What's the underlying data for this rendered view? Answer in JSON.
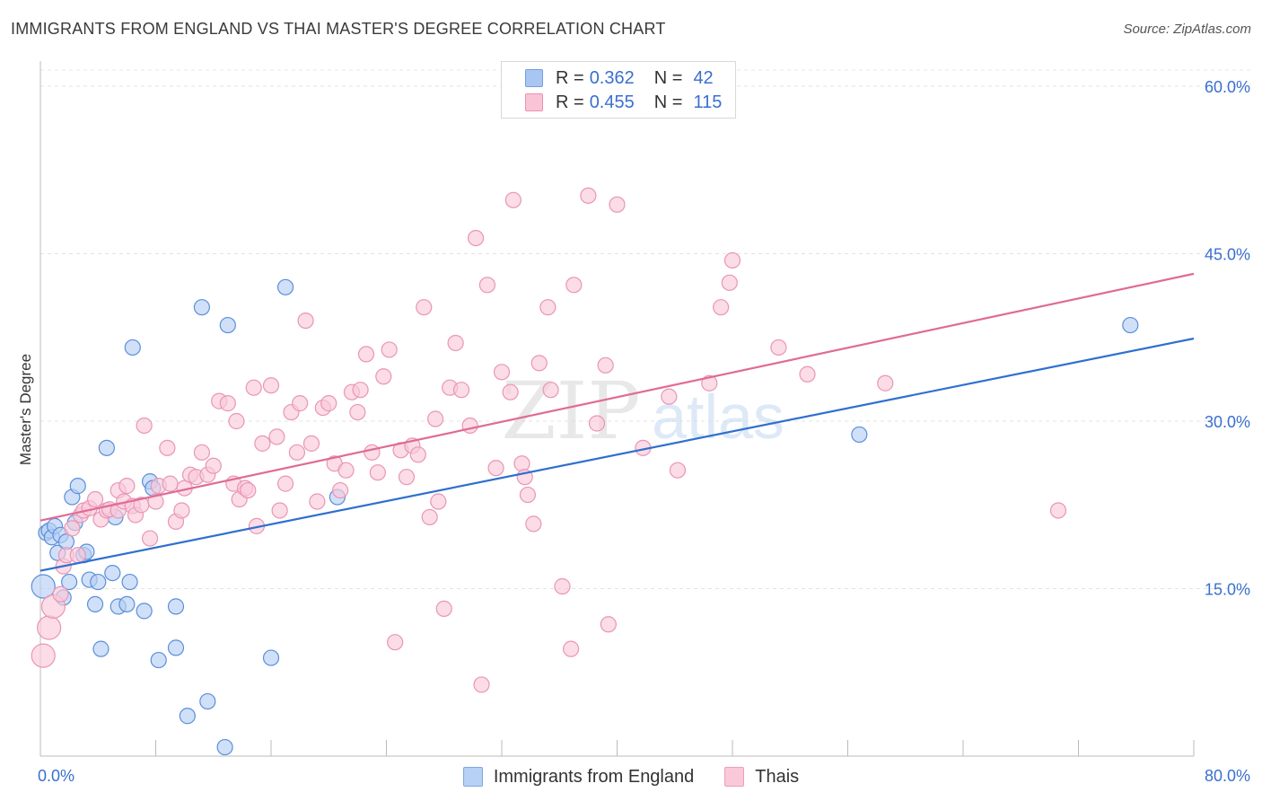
{
  "header": {
    "title": "IMMIGRANTS FROM ENGLAND VS THAI MASTER'S DEGREE CORRELATION CHART",
    "source": "Source: ZipAtlas.com"
  },
  "legend_top": {
    "r_label": "R =",
    "n_label": "N =",
    "series": [
      {
        "r": "0.362",
        "n": "42",
        "color": "#a9c6f2",
        "border": "#6f9fe0"
      },
      {
        "r": "0.455",
        "n": "115",
        "color": "#f9c4d6",
        "border": "#ec8fb0"
      }
    ]
  },
  "legend_bottom": {
    "items": [
      {
        "label": "Immigrants from England",
        "color": "#b7d0f5",
        "border": "#7ea6e3"
      },
      {
        "label": "Thais",
        "color": "#f9c9da",
        "border": "#ee9cbb"
      }
    ]
  },
  "watermark": {
    "zip": "ZIP",
    "atlas": "atlas"
  },
  "chart_data": {
    "type": "scatter",
    "title": "IMMIGRANTS FROM ENGLAND VS THAI MASTER'S DEGREE CORRELATION CHART",
    "xlabel": "",
    "ylabel": "Master's Degree",
    "xlim": [
      0,
      80
    ],
    "ylim": [
      0,
      60
    ],
    "x_tick_labels": [
      "0.0%",
      "80.0%"
    ],
    "y_ticks": [
      15,
      30,
      45,
      60
    ],
    "y_tick_labels": [
      "15.0%",
      "30.0%",
      "45.0%",
      "60.0%"
    ],
    "grid": true,
    "series": [
      {
        "name": "Immigrants from England",
        "color": "#5b8fd9",
        "fill": "#b7d0f5",
        "trend": {
          "x": [
            0,
            80
          ],
          "y": [
            16.6,
            37.4
          ],
          "color": "#2f6fd0"
        },
        "points": [
          [
            0.2,
            15.2
          ],
          [
            0.4,
            20.0
          ],
          [
            0.6,
            20.2
          ],
          [
            0.8,
            19.6
          ],
          [
            1.0,
            20.6
          ],
          [
            1.2,
            18.2
          ],
          [
            1.4,
            19.8
          ],
          [
            1.6,
            14.2
          ],
          [
            1.8,
            19.2
          ],
          [
            2.0,
            15.6
          ],
          [
            2.2,
            23.2
          ],
          [
            2.4,
            20.9
          ],
          [
            2.6,
            24.2
          ],
          [
            3.0,
            18.0
          ],
          [
            3.2,
            18.3
          ],
          [
            3.4,
            15.8
          ],
          [
            3.8,
            13.6
          ],
          [
            4.0,
            15.6
          ],
          [
            4.2,
            9.6
          ],
          [
            4.6,
            27.6
          ],
          [
            5.0,
            16.4
          ],
          [
            5.2,
            21.4
          ],
          [
            5.4,
            13.4
          ],
          [
            6.0,
            13.6
          ],
          [
            6.2,
            15.6
          ],
          [
            6.4,
            36.6
          ],
          [
            7.2,
            13.0
          ],
          [
            7.6,
            24.6
          ],
          [
            7.8,
            24.0
          ],
          [
            8.2,
            8.6
          ],
          [
            9.4,
            13.4
          ],
          [
            9.4,
            9.7
          ],
          [
            10.2,
            3.6
          ],
          [
            11.2,
            40.2
          ],
          [
            11.6,
            4.9
          ],
          [
            12.8,
            0.8
          ],
          [
            13.0,
            38.6
          ],
          [
            16.0,
            8.8
          ],
          [
            17.0,
            42.0
          ],
          [
            20.6,
            23.2
          ],
          [
            56.8,
            28.8
          ],
          [
            75.6,
            38.6
          ]
        ]
      },
      {
        "name": "Thais",
        "color": "#e996b4",
        "fill": "#f9c9da",
        "trend": {
          "x": [
            0,
            80
          ],
          "y": [
            21.1,
            43.2
          ],
          "color": "#e06b95"
        },
        "points": [
          [
            0.2,
            9.0
          ],
          [
            0.6,
            11.5
          ],
          [
            0.9,
            13.4
          ],
          [
            1.4,
            14.5
          ],
          [
            1.6,
            17.0
          ],
          [
            1.8,
            18.0
          ],
          [
            2.2,
            20.4
          ],
          [
            2.6,
            18.0
          ],
          [
            2.8,
            21.6
          ],
          [
            3.0,
            22.0
          ],
          [
            3.4,
            22.2
          ],
          [
            3.8,
            23.0
          ],
          [
            4.2,
            21.2
          ],
          [
            4.6,
            22.0
          ],
          [
            4.8,
            22.1
          ],
          [
            5.4,
            22.0
          ],
          [
            5.4,
            23.8
          ],
          [
            5.8,
            22.8
          ],
          [
            6.0,
            24.2
          ],
          [
            6.4,
            22.4
          ],
          [
            6.6,
            21.6
          ],
          [
            7.0,
            22.5
          ],
          [
            7.2,
            29.6
          ],
          [
            7.6,
            19.5
          ],
          [
            8.0,
            22.8
          ],
          [
            8.2,
            24.2
          ],
          [
            8.8,
            27.6
          ],
          [
            9.0,
            24.4
          ],
          [
            9.4,
            21.0
          ],
          [
            9.8,
            22.0
          ],
          [
            10.0,
            24.0
          ],
          [
            10.4,
            25.2
          ],
          [
            10.8,
            25.0
          ],
          [
            11.2,
            27.2
          ],
          [
            11.6,
            25.2
          ],
          [
            12.0,
            26.0
          ],
          [
            12.4,
            31.8
          ],
          [
            13.0,
            31.6
          ],
          [
            13.4,
            24.4
          ],
          [
            13.6,
            30.0
          ],
          [
            13.8,
            23.0
          ],
          [
            14.2,
            24.0
          ],
          [
            14.4,
            23.8
          ],
          [
            14.8,
            33.0
          ],
          [
            15.0,
            20.6
          ],
          [
            15.4,
            28.0
          ],
          [
            16.0,
            33.2
          ],
          [
            16.4,
            28.6
          ],
          [
            16.6,
            22.0
          ],
          [
            17.0,
            24.4
          ],
          [
            17.4,
            30.8
          ],
          [
            17.8,
            27.2
          ],
          [
            18.0,
            31.6
          ],
          [
            18.4,
            39.0
          ],
          [
            18.8,
            28.0
          ],
          [
            19.2,
            22.8
          ],
          [
            19.6,
            31.2
          ],
          [
            20.0,
            31.6
          ],
          [
            20.4,
            26.2
          ],
          [
            20.8,
            23.8
          ],
          [
            21.2,
            25.6
          ],
          [
            21.6,
            32.6
          ],
          [
            22.0,
            30.8
          ],
          [
            22.2,
            32.8
          ],
          [
            22.6,
            36.0
          ],
          [
            23.0,
            27.2
          ],
          [
            23.4,
            25.4
          ],
          [
            23.8,
            34.0
          ],
          [
            24.2,
            36.4
          ],
          [
            24.6,
            10.2
          ],
          [
            25.0,
            27.4
          ],
          [
            25.4,
            25.0
          ],
          [
            25.8,
            27.8
          ],
          [
            26.2,
            27.0
          ],
          [
            26.6,
            40.2
          ],
          [
            27.0,
            21.4
          ],
          [
            27.4,
            30.2
          ],
          [
            27.6,
            22.8
          ],
          [
            28.0,
            13.2
          ],
          [
            28.4,
            33.0
          ],
          [
            28.8,
            37.0
          ],
          [
            29.2,
            32.8
          ],
          [
            29.8,
            29.6
          ],
          [
            30.2,
            46.4
          ],
          [
            30.6,
            6.4
          ],
          [
            31.0,
            42.2
          ],
          [
            31.6,
            25.8
          ],
          [
            32.0,
            34.4
          ],
          [
            32.6,
            32.6
          ],
          [
            32.8,
            49.8
          ],
          [
            33.4,
            26.2
          ],
          [
            33.6,
            25.0
          ],
          [
            33.8,
            23.4
          ],
          [
            34.2,
            20.8
          ],
          [
            34.6,
            35.2
          ],
          [
            35.2,
            40.2
          ],
          [
            35.4,
            32.8
          ],
          [
            36.2,
            15.2
          ],
          [
            36.8,
            9.6
          ],
          [
            37.0,
            42.2
          ],
          [
            38.0,
            50.2
          ],
          [
            38.6,
            29.8
          ],
          [
            39.2,
            35.0
          ],
          [
            39.4,
            11.8
          ],
          [
            40.0,
            49.4
          ],
          [
            41.8,
            27.6
          ],
          [
            43.6,
            32.2
          ],
          [
            44.2,
            25.6
          ],
          [
            46.4,
            33.4
          ],
          [
            47.2,
            40.2
          ],
          [
            47.8,
            42.4
          ],
          [
            48.0,
            44.4
          ],
          [
            51.2,
            36.6
          ],
          [
            53.2,
            34.2
          ],
          [
            58.6,
            33.4
          ],
          [
            70.6,
            22.0
          ]
        ]
      }
    ]
  }
}
